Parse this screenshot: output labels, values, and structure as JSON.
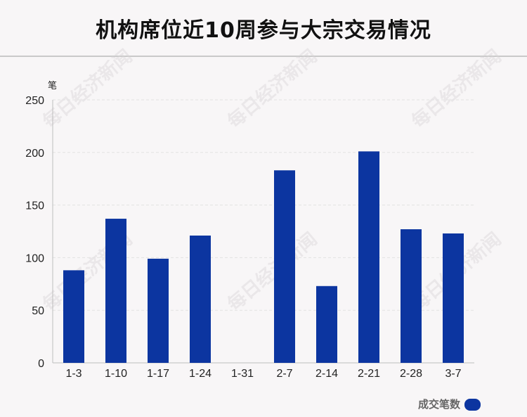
{
  "chart_data": {
    "type": "bar",
    "title": "机构席位近10周参与大宗交易情况",
    "ylabel": "笔",
    "categories": [
      "1-3",
      "1-10",
      "1-17",
      "1-24",
      "1-31",
      "2-7",
      "2-14",
      "2-21",
      "2-28",
      "3-7"
    ],
    "series": [
      {
        "name": "成交笔数",
        "values": [
          88,
          137,
          99,
          121,
          0,
          183,
          73,
          201,
          127,
          123
        ]
      }
    ],
    "ylim": [
      0,
      250
    ],
    "yticks": [
      0,
      50,
      100,
      150,
      200,
      250
    ],
    "grid": true,
    "legend_position": "bottom-right",
    "colors": {
      "bar": "#0c35a0",
      "grid": "#e2e2e2",
      "axis": "#bdbdbd"
    }
  },
  "watermark": "每日经济新闻"
}
